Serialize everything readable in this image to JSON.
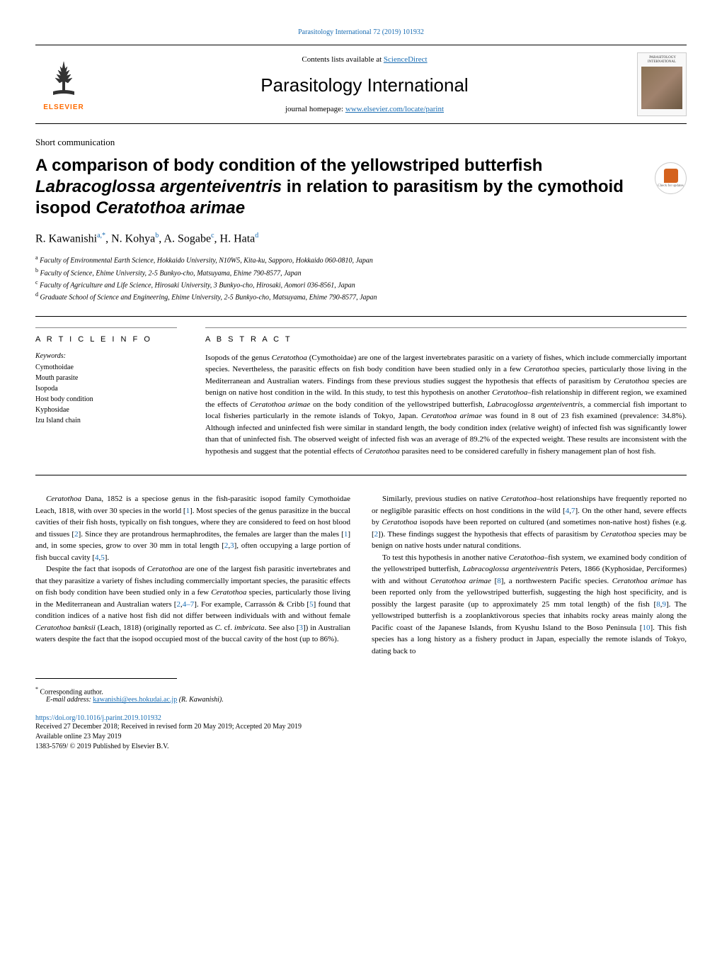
{
  "header": {
    "top_link": "Parasitology International 72 (2019) 101932",
    "contents_text_prefix": "Contents lists available at ",
    "contents_link": "ScienceDirect",
    "journal_name": "Parasitology International",
    "homepage_prefix": "journal homepage: ",
    "homepage_link": "www.elsevier.com/locate/parint",
    "elsevier_label": "ELSEVIER",
    "cover_title_line1": "PARASITOLOGY",
    "cover_title_line2": "INTERNATIONAL"
  },
  "article": {
    "type": "Short communication",
    "title_html": "A comparison of body condition of the yellowstriped butterfish <em>Labracoglossa argenteiventris</em> in relation to parasitism by the cymothoid isopod <em>Ceratothoa arimae</em>",
    "check_badge": "Check for updates",
    "authors_html": "R. Kawanishi<sup>a,*</sup>, N. Kohya<sup>b</sup>, A. Sogabe<sup>c</sup>, H. Hata<sup>d</sup>",
    "affiliations": [
      {
        "sup": "a",
        "text": "Faculty of Environmental Earth Science, Hokkaido University, N10W5, Kita-ku, Sapporo, Hokkaido 060-0810, Japan"
      },
      {
        "sup": "b",
        "text": "Faculty of Science, Ehime University, 2-5 Bunkyo-cho, Matsuyama, Ehime 790-8577, Japan"
      },
      {
        "sup": "c",
        "text": "Faculty of Agriculture and Life Science, Hirosaki University, 3 Bunkyo-cho, Hirosaki, Aomori 036-8561, Japan"
      },
      {
        "sup": "d",
        "text": "Graduate School of Science and Engineering, Ehime University, 2-5 Bunkyo-cho, Matsuyama, Ehime 790-8577, Japan"
      }
    ]
  },
  "info": {
    "article_info_label": "A R T I C L E  I N F O",
    "abstract_label": "A B S T R A C T",
    "keywords_label": "Keywords:",
    "keywords": [
      "Cymothoidae",
      "Mouth parasite",
      "Isopoda",
      "Host body condition",
      "Kyphosidae",
      "Izu Island chain"
    ],
    "abstract_html": "Isopods of the genus <em>Ceratothoa</em> (Cymothoidae) are one of the largest invertebrates parasitic on a variety of fishes, which include commercially important species. Nevertheless, the parasitic effects on fish body condition have been studied only in a few <em>Ceratothoa</em> species, particularly those living in the Mediterranean and Australian waters. Findings from these previous studies suggest the hypothesis that effects of parasitism by <em>Ceratothoa</em> species are benign on native host condition in the wild. In this study, to test this hypothesis on another <em>Ceratothoa</em>–fish relationship in different region, we examined the effects of <em>Ceratothoa arimae</em> on the body condition of the yellowstriped butterfish, <em>Labracoglossa argenteiventris</em>, a commercial fish important to local fisheries particularly in the remote islands of Tokyo, Japan. <em>Ceratothoa arimae</em> was found in 8 out of 23 fish examined (prevalence: 34.8%). Although infected and uninfected fish were similar in standard length, the body condition index (relative weight) of infected fish was significantly lower than that of uninfected fish. The observed weight of infected fish was an average of 89.2% of the expected weight. These results are inconsistent with the hypothesis and suggest that the potential effects of <em>Ceratothoa</em> parasites need to be considered carefully in fishery management plan of host fish."
  },
  "body": {
    "left": [
      "<em>Ceratothoa</em> Dana, 1852 is a speciose genus in the fish-parasitic isopod family Cymothoidae Leach, 1818, with over 30 species in the world [<span class='ref-link'>1</span>]. Most species of the genus parasitize in the buccal cavities of their fish hosts, typically on fish tongues, where they are considered to feed on host blood and tissues [<span class='ref-link'>2</span>]. Since they are protandrous hermaphrodites, the females are larger than the males [<span class='ref-link'>1</span>] and, in some species, grow to over 30 mm in total length [<span class='ref-link'>2</span>,<span class='ref-link'>3</span>], often occupying a large portion of fish buccal cavity [<span class='ref-link'>4</span>,<span class='ref-link'>5</span>].",
      "Despite the fact that isopods of <em>Ceratothoa</em> are one of the largest fish parasitic invertebrates and that they parasitize a variety of fishes including commercially important species, the parasitic effects on fish body condition have been studied only in a few <em>Ceratothoa</em> species, particularly those living in the Mediterranean and Australian waters [<span class='ref-link'>2</span>,<span class='ref-link'>4–7</span>]. For example, Carrassón & Cribb [<span class='ref-link'>5</span>] found that condition indices of a native host fish did not differ between individuals with and without female <em>Ceratothoa banksii</em> (Leach, 1818) (originally reported as <em>C.</em> cf. <em>imbricata</em>. See also [<span class='ref-link'>3</span>]) in Australian waters despite the fact that the isopod occupied most of the buccal cavity of the host (up to 86%)."
    ],
    "right": [
      "Similarly, previous studies on native <em>Ceratothoa</em>–host relationships have frequently reported no or negligible parasitic effects on host conditions in the wild [<span class='ref-link'>4</span>,<span class='ref-link'>7</span>]. On the other hand, severe effects by <em>Ceratothoa</em> isopods have been reported on cultured (and sometimes non-native host) fishes (e.g. [<span class='ref-link'>2</span>]). These findings suggest the hypothesis that effects of parasitism by <em>Ceratothoa</em> species may be benign on native hosts under natural conditions.",
      "To test this hypothesis in another native <em>Ceratothoa</em>–fish system, we examined body condition of the yellowstriped butterfish, <em>Labracoglossa argenteiventris</em> Peters, 1866 (Kyphosidae, Perciformes) with and without <em>Ceratothoa arimae</em> [<span class='ref-link'>8</span>], a northwestern Pacific species. <em>Ceratothoa arimae</em> has been reported only from the yellowstriped butterfish, suggesting the high host specificity, and is possibly the largest parasite (up to approximately 25 mm total length) of the fish [<span class='ref-link'>8</span>,<span class='ref-link'>9</span>]. The yellowstriped butterfish is a zooplanktivorous species that inhabits rocky areas mainly along the Pacific coast of the Japanese Islands, from Kyushu Island to the Boso Peninsula [<span class='ref-link'>10</span>]. This fish species has a long history as a fishery product in Japan, especially the remote islands of Tokyo, dating back to"
    ]
  },
  "footer": {
    "corresponding": "Corresponding author.",
    "email_label": "E-mail address: ",
    "email": "kawanishi@ees.hokudai.ac.jp",
    "email_suffix": " (R. Kawanishi).",
    "doi": "https://doi.org/10.1016/j.parint.2019.101932",
    "received": "Received 27 December 2018; Received in revised form 20 May 2019; Accepted 20 May 2019",
    "available": "Available online 23 May 2019",
    "issn": "1383-5769/ © 2019 Published by Elsevier B.V."
  },
  "colors": {
    "link": "#1a6db3",
    "elsevier_orange": "#ff6b00",
    "badge_orange": "#d4621e"
  }
}
